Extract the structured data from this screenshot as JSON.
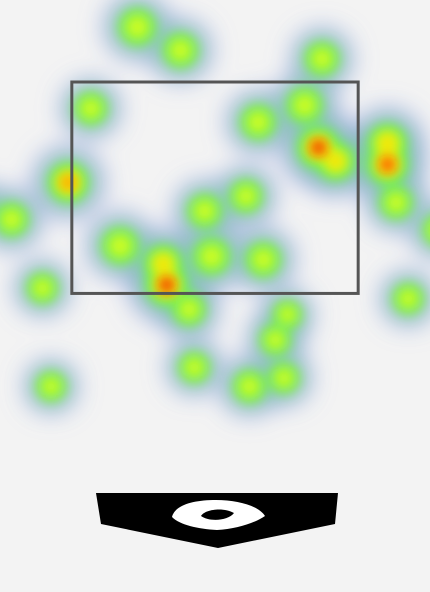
{
  "chart_data": {
    "type": "heatmap",
    "title": "",
    "xlabel": "",
    "ylabel": "",
    "x_range": [
      -1.2,
      1.2
    ],
    "y_range": [
      0.0,
      4.2
    ],
    "strike_zone": {
      "x": [
        -0.83,
        0.83
      ],
      "y": [
        1.5,
        3.5
      ]
    },
    "colors": {
      "background": "#f3f3f3",
      "strike_zone": "#555555",
      "home_plate": "#000000"
    },
    "color_scale": [
      "#8f98e8",
      "#7fd0a2",
      "#6ef14f",
      "#d8ff1a",
      "#ffe000",
      "#ff9600",
      "#ff2400",
      "#b30000"
    ],
    "points": [
      {
        "x": -0.45,
        "y": 4.02,
        "w": 0.75
      },
      {
        "x": -0.2,
        "y": 3.8,
        "w": 0.65
      },
      {
        "x": 0.62,
        "y": 3.72,
        "w": 0.6
      },
      {
        "x": -0.72,
        "y": 3.25,
        "w": 0.55
      },
      {
        "x": 0.25,
        "y": 3.12,
        "w": 0.65
      },
      {
        "x": 0.52,
        "y": 3.28,
        "w": 0.7
      },
      {
        "x": 0.6,
        "y": 2.88,
        "w": 1.0
      },
      {
        "x": 0.7,
        "y": 2.75,
        "w": 0.8
      },
      {
        "x": 1.0,
        "y": 2.92,
        "w": 0.85
      },
      {
        "x": 1.0,
        "y": 2.72,
        "w": 0.95
      },
      {
        "x": 1.05,
        "y": 2.36,
        "w": 0.55
      },
      {
        "x": 1.3,
        "y": 2.1,
        "w": 0.5
      },
      {
        "x": 0.18,
        "y": 2.42,
        "w": 0.55
      },
      {
        "x": -0.06,
        "y": 2.28,
        "w": 0.6
      },
      {
        "x": -0.85,
        "y": 2.55,
        "w": 0.9
      },
      {
        "x": -1.18,
        "y": 2.2,
        "w": 0.6
      },
      {
        "x": -1.38,
        "y": 2.3,
        "w": 0.45
      },
      {
        "x": -0.55,
        "y": 1.95,
        "w": 0.75
      },
      {
        "x": -0.3,
        "y": 1.78,
        "w": 0.8
      },
      {
        "x": -0.02,
        "y": 1.85,
        "w": 0.75
      },
      {
        "x": 0.28,
        "y": 1.82,
        "w": 0.65
      },
      {
        "x": -0.28,
        "y": 1.58,
        "w": 1.0
      },
      {
        "x": -0.15,
        "y": 1.35,
        "w": 0.55
      },
      {
        "x": -1.0,
        "y": 1.55,
        "w": 0.45
      },
      {
        "x": 1.12,
        "y": 1.45,
        "w": 0.45
      },
      {
        "x": 0.35,
        "y": 1.06,
        "w": 0.45
      },
      {
        "x": -0.12,
        "y": 0.8,
        "w": 0.45
      },
      {
        "x": 0.2,
        "y": 0.62,
        "w": 0.55
      },
      {
        "x": 0.4,
        "y": 0.7,
        "w": 0.45
      },
      {
        "x": -0.95,
        "y": 0.62,
        "w": 0.4
      },
      {
        "x": 0.42,
        "y": 1.3,
        "w": 0.35
      }
    ]
  }
}
